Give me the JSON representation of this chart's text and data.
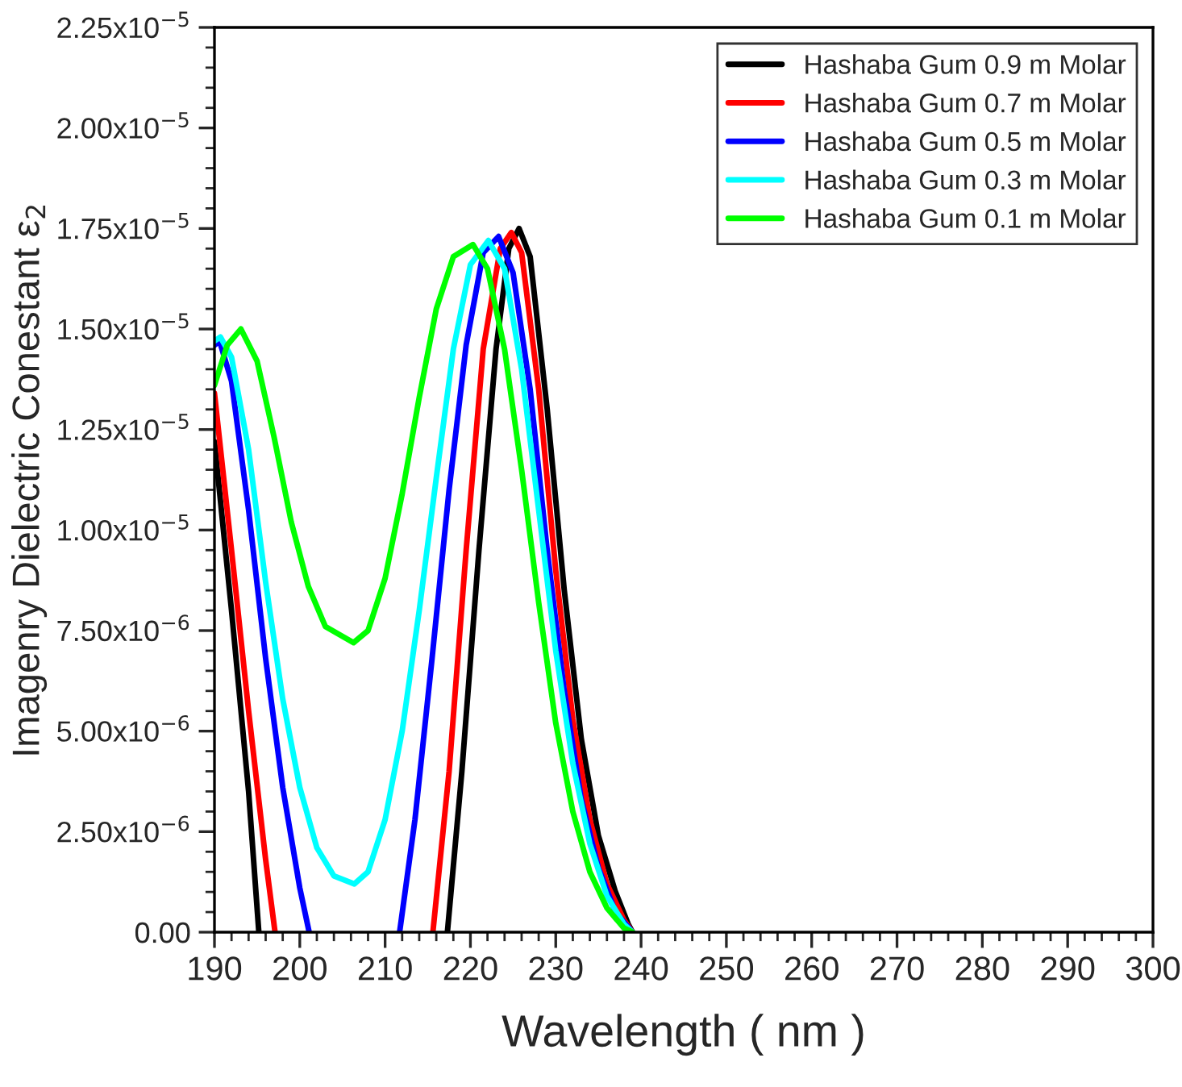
{
  "chart_data": {
    "type": "line",
    "xlabel": "Wavelength ( nm )",
    "ylabel": "Imagenry Dielectric Conestant ε$_{2}$",
    "xlim": [
      190,
      300
    ],
    "xticks": [
      190,
      200,
      210,
      220,
      230,
      240,
      250,
      260,
      270,
      280,
      290,
      300
    ],
    "ylim": [
      0,
      2.25e-05
    ],
    "yticks": [
      {
        "value": 0,
        "label": "0.00"
      },
      {
        "value": 2.5e-06,
        "label": "2.50x10$^{−6}$"
      },
      {
        "value": 5e-06,
        "label": "5.00x10$^{−6}$"
      },
      {
        "value": 7.5e-06,
        "label": "7.50x10$^{−6}$"
      },
      {
        "value": 1e-05,
        "label": "1.00x10$^{−5}$"
      },
      {
        "value": 1.25e-05,
        "label": "1.25x10$^{−5}$"
      },
      {
        "value": 1.5e-05,
        "label": "1.50x10$^{−5}$"
      },
      {
        "value": 1.75e-05,
        "label": "1.75x10$^{−5}$"
      },
      {
        "value": 2e-05,
        "label": "2.00x10$^{−5}$"
      },
      {
        "value": 2.25e-05,
        "label": "2.25x10$^{−5}$"
      }
    ],
    "grid": false,
    "legend": "top right",
    "marker": "none",
    "line_style": "solid",
    "series": [
      {
        "name": "Hashaba Gum 0.9 m Molar",
        "color": "#000000",
        "x": [
          190,
          192,
          194,
          195.2,
          null,
          217.3,
          219,
          221,
          223,
          224.5,
          225.7,
          227,
          229,
          231,
          233,
          235,
          237,
          238.5,
          239
        ],
        "values": [
          1.22e-05,
          8e-06,
          3.5e-06,
          0,
          null,
          0,
          4e-06,
          9.5e-06,
          1.45e-05,
          1.7e-05,
          1.75e-05,
          1.68e-05,
          1.3e-05,
          8.5e-06,
          4.8e-06,
          2.4e-06,
          1e-06,
          2e-07,
          0
        ]
      },
      {
        "name": "Hashaba Gum 0.7 m Molar",
        "color": "#ff0000",
        "x": [
          190,
          192,
          194,
          196,
          197.1,
          null,
          215.6,
          217.5,
          219.5,
          221.5,
          223.5,
          224.8,
          226,
          228,
          230,
          232,
          234,
          236,
          238,
          239
        ],
        "values": [
          1.34e-05,
          9.5e-06,
          5.5e-06,
          1.8e-06,
          0,
          null,
          0,
          4e-06,
          9.5e-06,
          1.45e-05,
          1.7e-05,
          1.74e-05,
          1.69e-05,
          1.35e-05,
          9e-06,
          5.3e-06,
          2.8e-06,
          1.2e-06,
          3e-07,
          0
        ]
      },
      {
        "name": "Hashaba Gum 0.5 m Molar",
        "color": "#0000ff",
        "x": [
          190,
          190.6,
          192,
          194,
          196,
          198,
          200,
          201.1,
          null,
          211.7,
          213.5,
          215.5,
          217.5,
          219.5,
          221.5,
          223.3,
          225,
          227,
          229,
          231,
          233,
          235,
          237,
          239
        ],
        "values": [
          1.46e-05,
          1.47e-05,
          1.37e-05,
          1.05e-05,
          6.8e-06,
          3.6e-06,
          1.1e-06,
          0,
          null,
          0,
          2.8e-06,
          6.8e-06,
          1.1e-05,
          1.46e-05,
          1.69e-05,
          1.73e-05,
          1.64e-05,
          1.35e-05,
          9.5e-06,
          6e-06,
          3.3e-06,
          1.6e-06,
          5e-07,
          0
        ]
      },
      {
        "name": "Hashaba Gum 0.3 m Molar",
        "color": "#00ffff",
        "x": [
          190,
          190.7,
          192,
          194,
          196,
          198,
          200,
          202,
          204,
          206.4,
          208,
          210,
          212,
          214,
          216,
          218,
          220,
          222.1,
          224,
          226,
          228,
          230,
          232,
          234,
          236,
          238,
          239
        ],
        "values": [
          1.47e-05,
          1.48e-05,
          1.43e-05,
          1.2e-05,
          8.7e-06,
          5.8e-06,
          3.6e-06,
          2.1e-06,
          1.4e-06,
          1.2e-06,
          1.5e-06,
          2.8e-06,
          5e-06,
          8e-06,
          1.13e-05,
          1.45e-05,
          1.66e-05,
          1.72e-05,
          1.65e-05,
          1.4e-05,
          1.05e-05,
          7e-06,
          4.2e-06,
          2.2e-06,
          9e-07,
          2e-07,
          0
        ]
      },
      {
        "name": "Hashaba Gum 0.1 m Molar",
        "color": "#00ff00",
        "x": [
          190,
          191.5,
          193.1,
          195,
          197,
          199,
          201,
          203,
          206.3,
          208,
          210,
          212,
          214,
          216,
          218,
          220.3,
          222,
          224,
          226,
          228,
          230,
          232,
          234,
          236,
          238,
          239
        ],
        "values": [
          1.36e-05,
          1.46e-05,
          1.5e-05,
          1.42e-05,
          1.23e-05,
          1.02e-05,
          8.6e-06,
          7.6e-06,
          7.2e-06,
          7.5e-06,
          8.8e-06,
          1.09e-05,
          1.33e-05,
          1.55e-05,
          1.68e-05,
          1.71e-05,
          1.65e-05,
          1.45e-05,
          1.15e-05,
          8.2e-06,
          5.2e-06,
          3e-06,
          1.5e-06,
          6e-07,
          1e-07,
          0
        ]
      }
    ]
  }
}
